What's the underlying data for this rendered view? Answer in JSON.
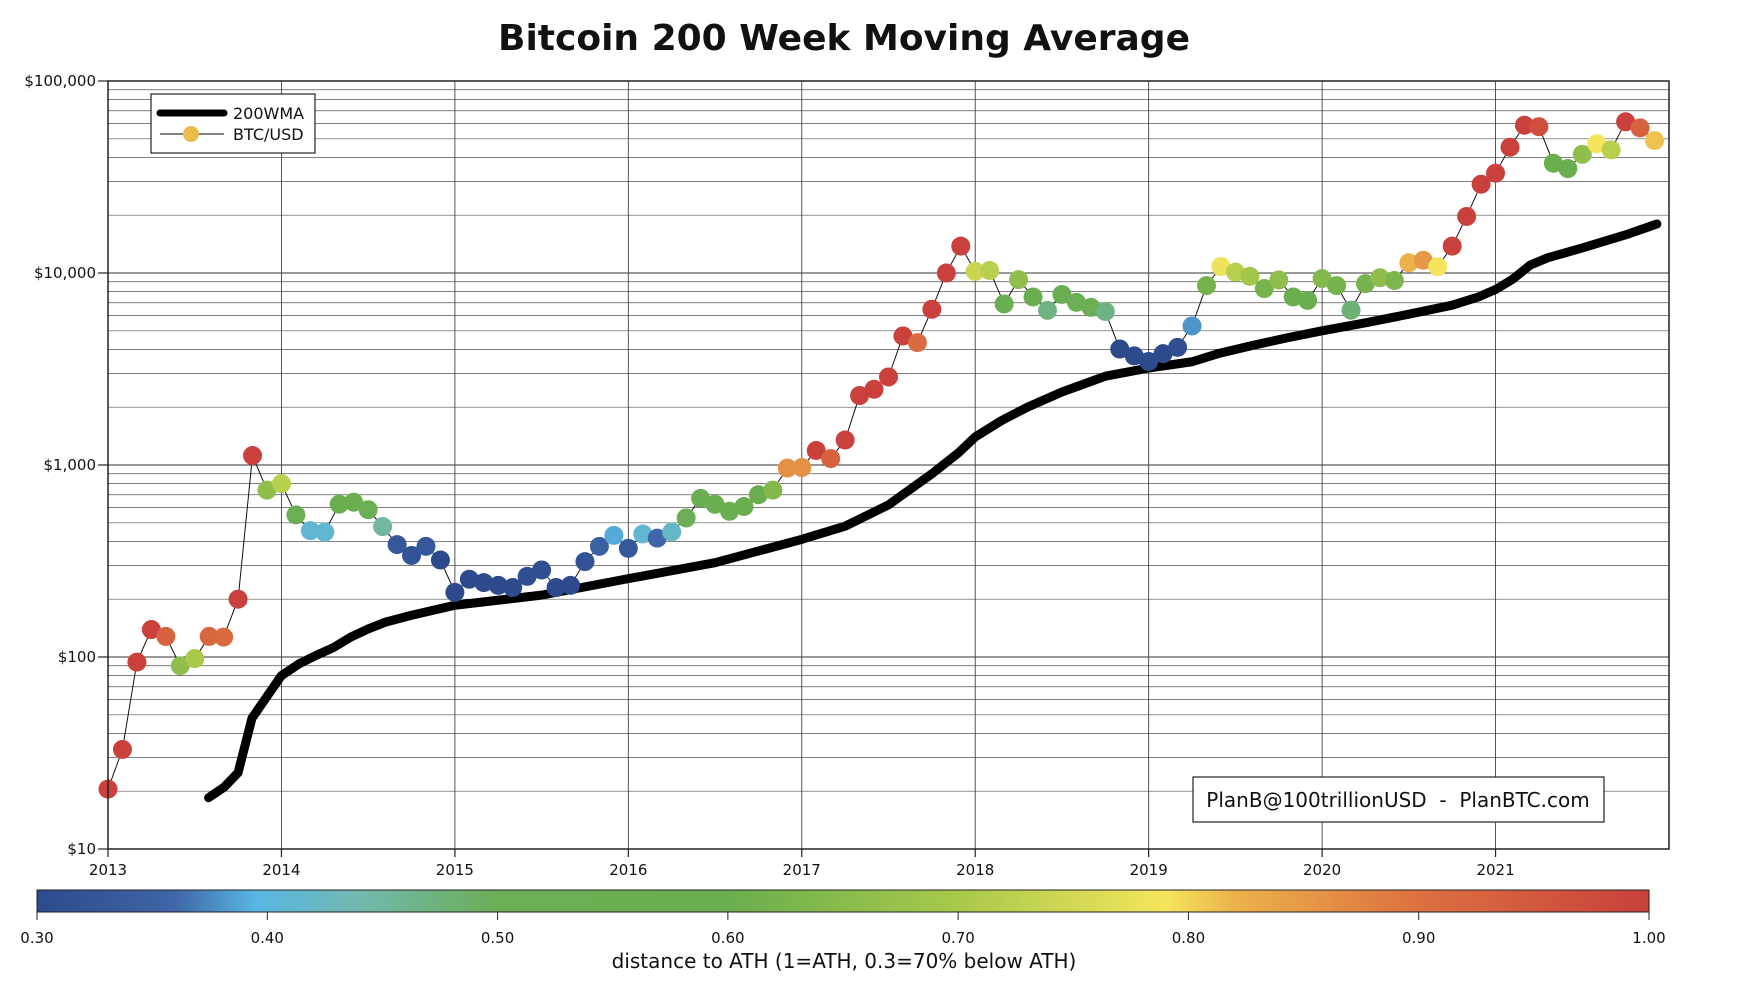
{
  "chart_data": {
    "type": "scatter",
    "title": "Bitcoin 200 Week Moving Average",
    "xlabel": "",
    "ylabel": "",
    "yscale": "log",
    "xlim": [
      2013,
      2022
    ],
    "ylim": [
      10,
      100000
    ],
    "grid": true,
    "x_ticks": [
      2013,
      2014,
      2015,
      2016,
      2017,
      2018,
      2019,
      2020,
      2021
    ],
    "x_tick_labels": [
      "2013",
      "2014",
      "2015",
      "2016",
      "2017",
      "2018",
      "2019",
      "2020",
      "2021"
    ],
    "y_ticks": [
      10,
      100,
      1000,
      10000,
      100000
    ],
    "y_tick_labels": [
      "$10",
      "$100",
      "$1,000",
      "$10,000",
      "$100,000"
    ],
    "legend": {
      "placement": "top-left",
      "entries": [
        "200WMA",
        "BTC/USD"
      ]
    },
    "annotation": "PlanB@100trillionUSD  -  PlanBTC.com",
    "colorbar": {
      "label": "distance to ATH (1=ATH, 0.3=70% below ATH)",
      "range": [
        0.3,
        1.0
      ],
      "tick_labels": [
        "0.30",
        "0.40",
        "0.50",
        "0.60",
        "0.70",
        "0.80",
        "0.90",
        "1.00"
      ],
      "stops": [
        {
          "v": 0.3,
          "color": "#2c4a8c"
        },
        {
          "v": 0.36,
          "color": "#3f66a8"
        },
        {
          "v": 0.395,
          "color": "#58b6e2"
        },
        {
          "v": 0.44,
          "color": "#72b8b0"
        },
        {
          "v": 0.5,
          "color": "#6cae56"
        },
        {
          "v": 0.6,
          "color": "#6aae4e"
        },
        {
          "v": 0.7,
          "color": "#a8c94a"
        },
        {
          "v": 0.79,
          "color": "#f4e55c"
        },
        {
          "v": 0.82,
          "color": "#ecb24a"
        },
        {
          "v": 0.9,
          "color": "#dc7040"
        },
        {
          "v": 1.0,
          "color": "#c9403c"
        }
      ]
    },
    "series": [
      {
        "name": "BTC/USD",
        "start": 2013.0,
        "step_months": 1,
        "values": [
          20.5,
          33,
          94,
          139,
          128,
          90,
          98,
          128,
          127,
          200,
          1120,
          740,
          800,
          550,
          455,
          447,
          625,
          640,
          585,
          478,
          385,
          338,
          377,
          320,
          217,
          254,
          244,
          236,
          230,
          263,
          284,
          230,
          236,
          314,
          377,
          430,
          368,
          437,
          416,
          448,
          530,
          670,
          624,
          574,
          608,
          700,
          740,
          963,
          970,
          1190,
          1080,
          1350,
          2300,
          2480,
          2875,
          4700,
          4340,
          6470,
          10000,
          13800,
          10200,
          10300,
          6900,
          9240,
          7500,
          6390,
          7730,
          7030,
          6620,
          6300,
          4017,
          3700,
          3460,
          3800,
          4100,
          5300,
          8600,
          10800,
          10100,
          9600,
          8300,
          9200,
          7500,
          7200,
          9350,
          8600,
          6400,
          8800,
          9450,
          9140,
          11300,
          11650,
          10800,
          13800,
          19700,
          29000,
          33100,
          45200,
          58800,
          57800,
          37300,
          35000,
          41500,
          47100,
          43800,
          61300,
          57000,
          49000
        ],
        "distance_to_ath": [
          1,
          1,
          1,
          1,
          0.93,
          0.66,
          0.7,
          0.92,
          0.91,
          1,
          1,
          0.66,
          0.72,
          0.5,
          0.41,
          0.41,
          0.55,
          0.57,
          0.52,
          0.45,
          0.33,
          0.32,
          0.33,
          0.3,
          0.3,
          0.3,
          0.3,
          0.3,
          0.3,
          0.31,
          0.31,
          0.3,
          0.3,
          0.32,
          0.35,
          0.39,
          0.33,
          0.41,
          0.36,
          0.42,
          0.5,
          0.55,
          0.55,
          0.55,
          0.56,
          0.6,
          0.64,
          0.86,
          0.86,
          1,
          0.93,
          1,
          1,
          1,
          1,
          1,
          0.91,
          1,
          1,
          1,
          0.74,
          0.72,
          0.55,
          0.66,
          0.56,
          0.47,
          0.55,
          0.52,
          0.5,
          0.47,
          0.3,
          0.3,
          0.3,
          0.3,
          0.31,
          0.38,
          0.62,
          0.78,
          0.72,
          0.69,
          0.62,
          0.66,
          0.58,
          0.56,
          0.64,
          0.62,
          0.48,
          0.62,
          0.66,
          0.63,
          0.82,
          0.85,
          0.79,
          1,
          1,
          1,
          1,
          1,
          1,
          0.97,
          0.6,
          0.56,
          0.66,
          0.79,
          0.72,
          1,
          0.93,
          0.81
        ]
      },
      {
        "name": "200WMA",
        "x": [
          2013.58,
          2013.67,
          2013.75,
          2013.83,
          2013.92,
          2014.0,
          2014.1,
          2014.2,
          2014.3,
          2014.4,
          2014.5,
          2014.6,
          2014.75,
          2015.0,
          2015.5,
          2016.0,
          2016.5,
          2017.0,
          2017.25,
          2017.5,
          2017.75,
          2017.9,
          2018.0,
          2018.15,
          2018.3,
          2018.5,
          2018.75,
          2019.0,
          2019.25,
          2019.4,
          2019.6,
          2019.8,
          2020.0,
          2020.25,
          2020.5,
          2020.75,
          2020.9,
          2021.0,
          2021.1,
          2021.2,
          2021.3,
          2021.5,
          2021.75,
          2021.93
        ],
        "values": [
          18.5,
          21,
          25,
          48,
          63,
          80,
          92,
          102,
          112,
          127,
          140,
          152,
          165,
          186,
          210,
          256,
          310,
          410,
          480,
          620,
          900,
          1150,
          1400,
          1700,
          2000,
          2400,
          2900,
          3200,
          3450,
          3800,
          4200,
          4600,
          5000,
          5500,
          6100,
          6800,
          7500,
          8200,
          9300,
          11000,
          12000,
          13500,
          15800,
          18000
        ]
      }
    ]
  }
}
